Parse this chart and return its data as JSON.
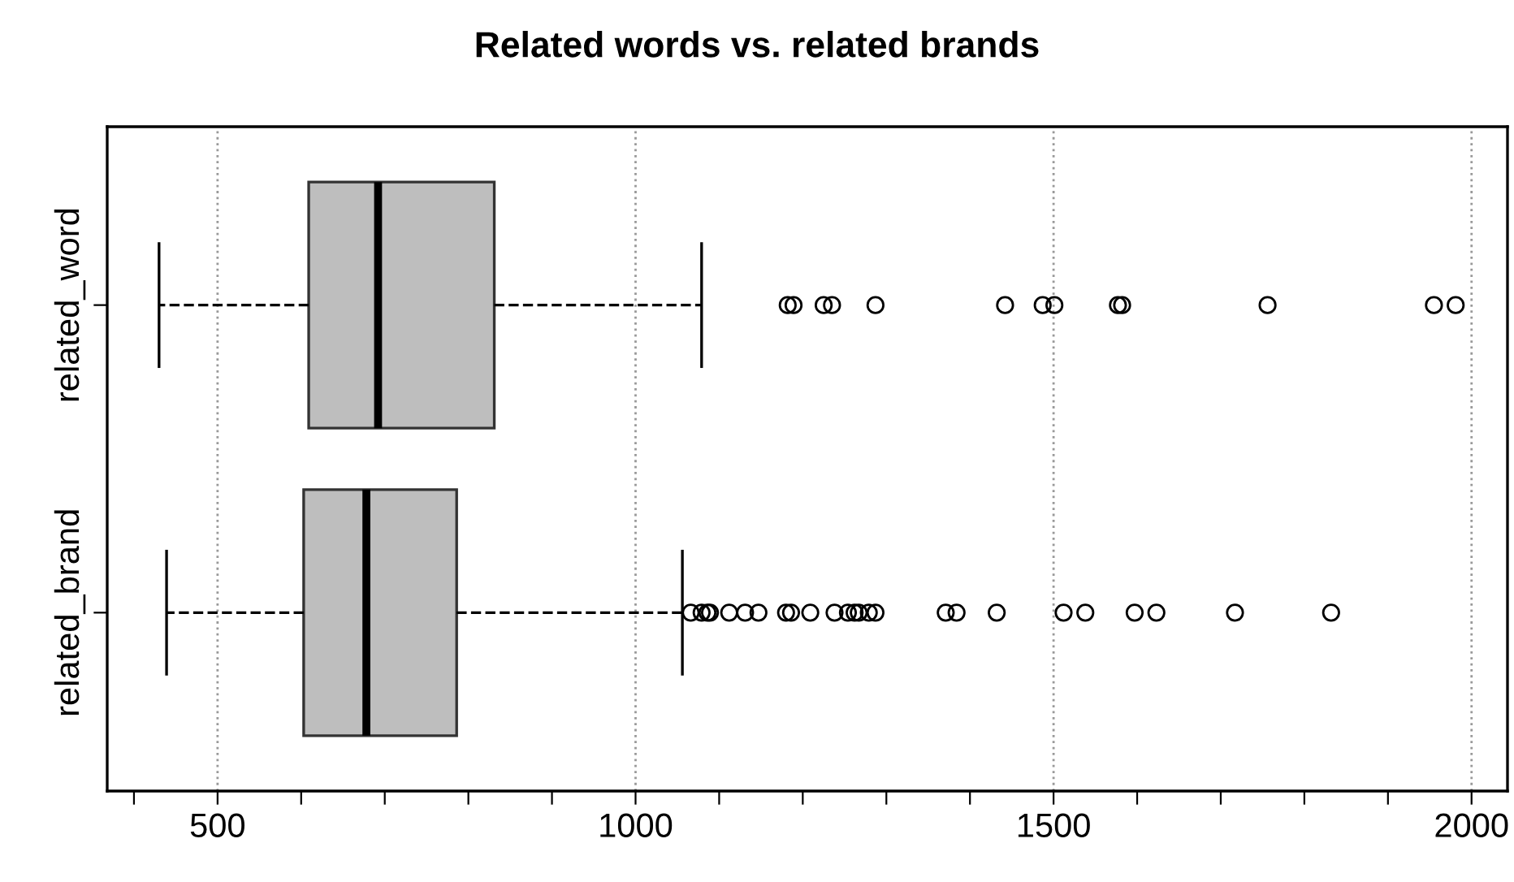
{
  "chart_data": {
    "type": "box",
    "orientation": "horizontal",
    "title": "Related words vs. related brands",
    "categories": [
      "related_word",
      "related_brand"
    ],
    "boxes": [
      {
        "low": 430,
        "q1": 609,
        "median": 692,
        "q3": 831,
        "high": 1079,
        "outliers": [
          1182,
          1189,
          1225,
          1235,
          1287,
          1442,
          1487,
          1501,
          1577,
          1582,
          1756,
          1955,
          1981
        ]
      },
      {
        "low": 439,
        "q1": 603,
        "median": 678,
        "q3": 786,
        "high": 1056,
        "outliers": [
          1066,
          1079,
          1086,
          1089,
          1112,
          1131,
          1147,
          1180,
          1186,
          1209,
          1238,
          1254,
          1262,
          1267,
          1279,
          1287,
          1371,
          1384,
          1432,
          1512,
          1538,
          1597,
          1623,
          1717,
          1832
        ]
      }
    ],
    "color": "#bebebe",
    "xlim": [
      368,
      2043
    ],
    "xticks": [
      {
        "value": 400,
        "label": null
      },
      500,
      {
        "value": 600,
        "label": null
      },
      {
        "value": 700,
        "label": null
      },
      {
        "value": 800,
        "label": null
      },
      {
        "value": 900,
        "label": null
      },
      1000,
      {
        "value": 1100,
        "label": null
      },
      {
        "value": 1200,
        "label": null
      },
      {
        "value": 1300,
        "label": null
      },
      {
        "value": 1400,
        "label": null
      },
      1500,
      {
        "value": 1600,
        "label": null
      },
      {
        "value": 1700,
        "label": null
      },
      {
        "value": 1800,
        "label": null
      },
      {
        "value": 1900,
        "label": null
      },
      2000
    ],
    "grid": "x",
    "marker": "circle",
    "line_style": "dashed"
  }
}
